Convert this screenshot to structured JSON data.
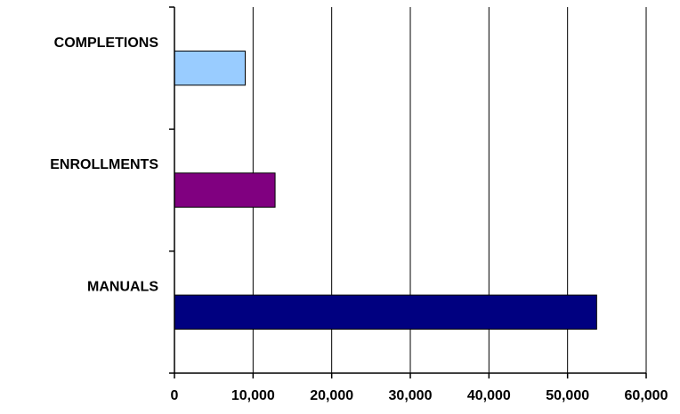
{
  "chart_data": {
    "type": "bar",
    "orientation": "horizontal",
    "categories": [
      "COMPLETIONS",
      "ENROLLMENTS",
      "MANUALS"
    ],
    "values": [
      9000,
      12800,
      53700
    ],
    "colors": [
      "#99ccff",
      "#800080",
      "#000080"
    ],
    "bar_outline_color": "#000000",
    "xlim": [
      0,
      60000
    ],
    "x_ticks": [
      0,
      10000,
      20000,
      30000,
      40000,
      50000,
      60000
    ],
    "x_tick_labels": [
      "0",
      "10,000",
      "20,000",
      "30,000",
      "40,000",
      "50,000",
      "60,000"
    ],
    "grid": "vertical",
    "legend": "none",
    "title": "",
    "xlabel": "",
    "ylabel": ""
  }
}
